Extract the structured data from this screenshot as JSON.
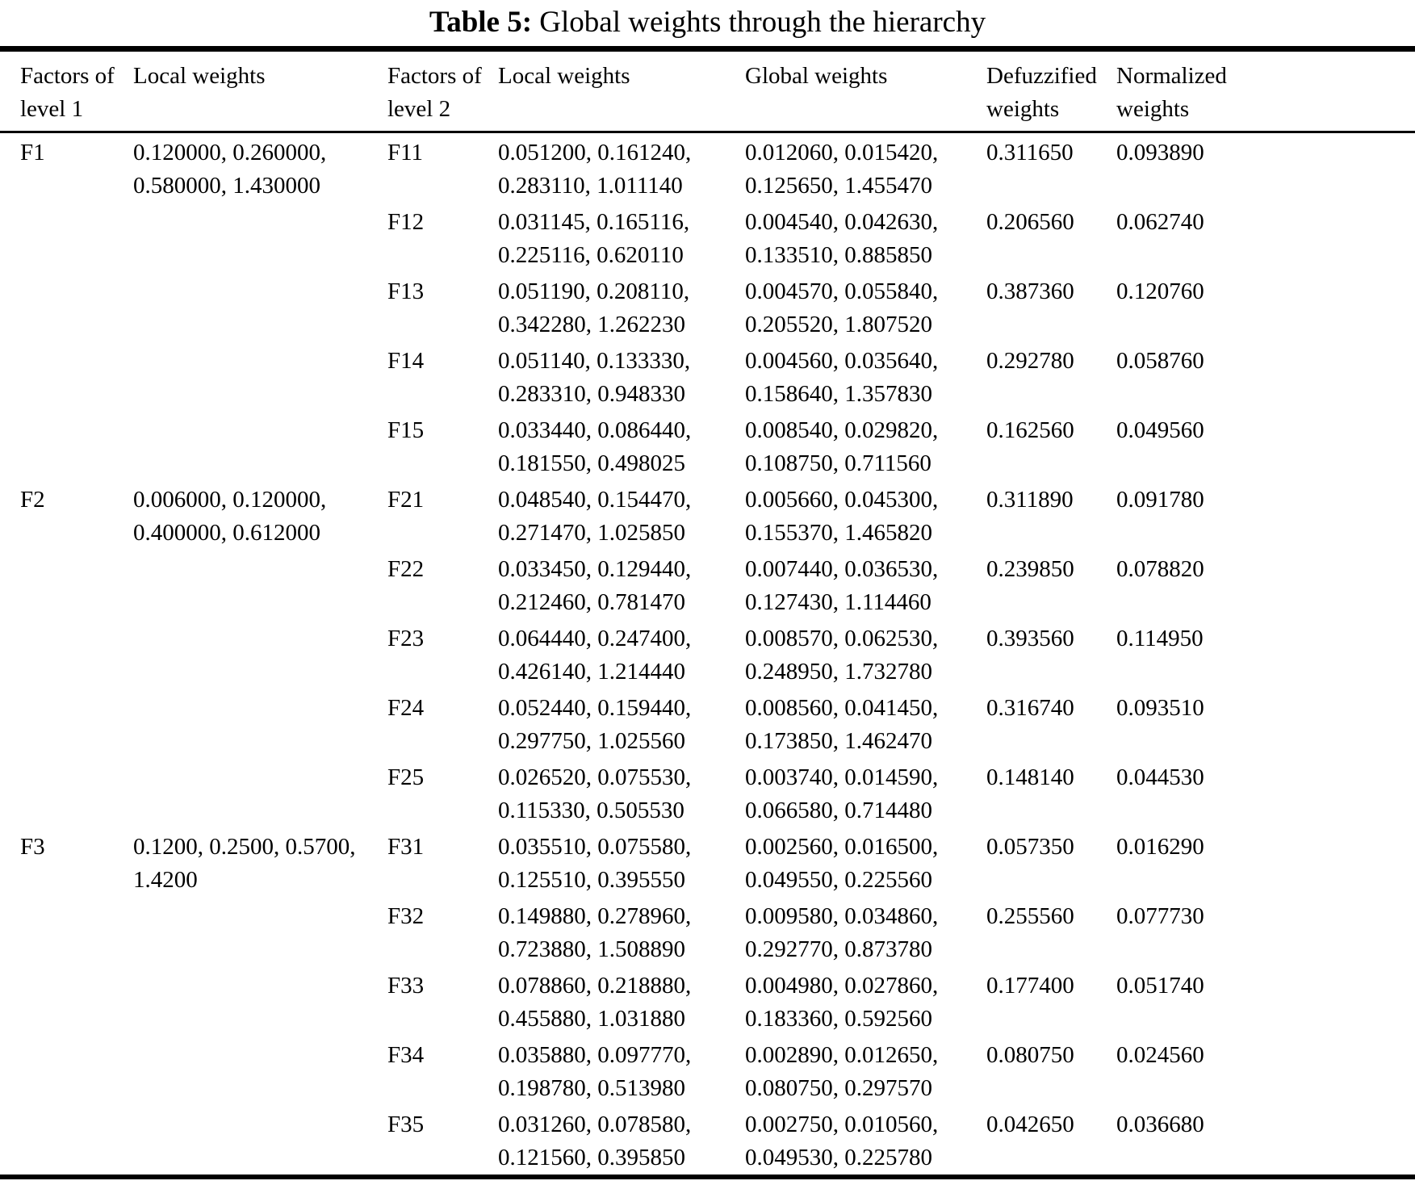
{
  "title": {
    "label": "Table 5:",
    "text": " Global weights through the hierarchy"
  },
  "table": {
    "headers": [
      "Factors of\nlevel 1",
      "Local weights",
      "Factors of\nlevel 2",
      "Local weights",
      "Global weights",
      "Defuzzified\nweights",
      "Normalized\nweights"
    ],
    "groups": [
      {
        "factor": "F1",
        "local_weights": "0.120000, 0.260000,\n0.580000, 1.430000",
        "rows": [
          {
            "factor": "F11",
            "local": "0.051200, 0.161240,\n0.283110, 1.011140",
            "global": "0.012060, 0.015420,\n0.125650, 1.455470",
            "defuzzified": "0.311650",
            "normalized": "0.093890"
          },
          {
            "factor": "F12",
            "local": "0.031145, 0.165116,\n0.225116, 0.620110",
            "global": "0.004540, 0.042630,\n0.133510, 0.885850",
            "defuzzified": "0.206560",
            "normalized": "0.062740"
          },
          {
            "factor": "F13",
            "local": "0.051190, 0.208110,\n0.342280, 1.262230",
            "global": "0.004570, 0.055840,\n0.205520, 1.807520",
            "defuzzified": "0.387360",
            "normalized": "0.120760"
          },
          {
            "factor": "F14",
            "local": "0.051140, 0.133330,\n0.283310, 0.948330",
            "global": "0.004560, 0.035640,\n0.158640, 1.357830",
            "defuzzified": "0.292780",
            "normalized": "0.058760"
          },
          {
            "factor": "F15",
            "local": "0.033440, 0.086440,\n0.181550, 0.498025",
            "global": "0.008540, 0.029820,\n0.108750, 0.711560",
            "defuzzified": "0.162560",
            "normalized": "0.049560"
          }
        ]
      },
      {
        "factor": "F2",
        "local_weights": "0.006000, 0.120000,\n0.400000, 0.612000",
        "rows": [
          {
            "factor": "F21",
            "local": "0.048540, 0.154470,\n0.271470, 1.025850",
            "global": "0.005660, 0.045300,\n0.155370, 1.465820",
            "defuzzified": "0.311890",
            "normalized": "0.091780"
          },
          {
            "factor": "F22",
            "local": "0.033450, 0.129440,\n0.212460, 0.781470",
            "global": "0.007440, 0.036530,\n0.127430, 1.114460",
            "defuzzified": "0.239850",
            "normalized": "0.078820"
          },
          {
            "factor": "F23",
            "local": "0.064440, 0.247400,\n0.426140, 1.214440",
            "global": "0.008570, 0.062530,\n0.248950, 1.732780",
            "defuzzified": "0.393560",
            "normalized": "0.114950"
          },
          {
            "factor": "F24",
            "local": "0.052440, 0.159440,\n0.297750, 1.025560",
            "global": "0.008560, 0.041450,\n0.173850, 1.462470",
            "defuzzified": "0.316740",
            "normalized": "0.093510"
          },
          {
            "factor": "F25",
            "local": "0.026520, 0.075530,\n0.115330, 0.505530",
            "global": "0.003740, 0.014590,\n0.066580, 0.714480",
            "defuzzified": "0.148140",
            "normalized": "0.044530"
          }
        ]
      },
      {
        "factor": "F3",
        "local_weights": "0.1200, 0.2500, 0.5700,\n1.4200",
        "rows": [
          {
            "factor": "F31",
            "local": "0.035510, 0.075580,\n0.125510, 0.395550",
            "global": "0.002560, 0.016500,\n0.049550, 0.225560",
            "defuzzified": "0.057350",
            "normalized": "0.016290"
          },
          {
            "factor": "F32",
            "local": "0.149880, 0.278960,\n0.723880, 1.508890",
            "global": "0.009580, 0.034860,\n0.292770, 0.873780",
            "defuzzified": "0.255560",
            "normalized": "0.077730"
          },
          {
            "factor": "F33",
            "local": "0.078860, 0.218880,\n0.455880, 1.031880",
            "global": "0.004980, 0.027860,\n0.183360, 0.592560",
            "defuzzified": "0.177400",
            "normalized": "0.051740"
          },
          {
            "factor": "F34",
            "local": "0.035880, 0.097770,\n0.198780, 0.513980",
            "global": "0.002890, 0.012650,\n0.080750, 0.297570",
            "defuzzified": "0.080750",
            "normalized": "0.024560"
          },
          {
            "factor": "F35",
            "local": "0.031260, 0.078580,\n0.121560, 0.395850",
            "global": "0.002750, 0.010560,\n0.049530, 0.225780",
            "defuzzified": "0.042650",
            "normalized": "0.036680"
          }
        ]
      }
    ]
  }
}
